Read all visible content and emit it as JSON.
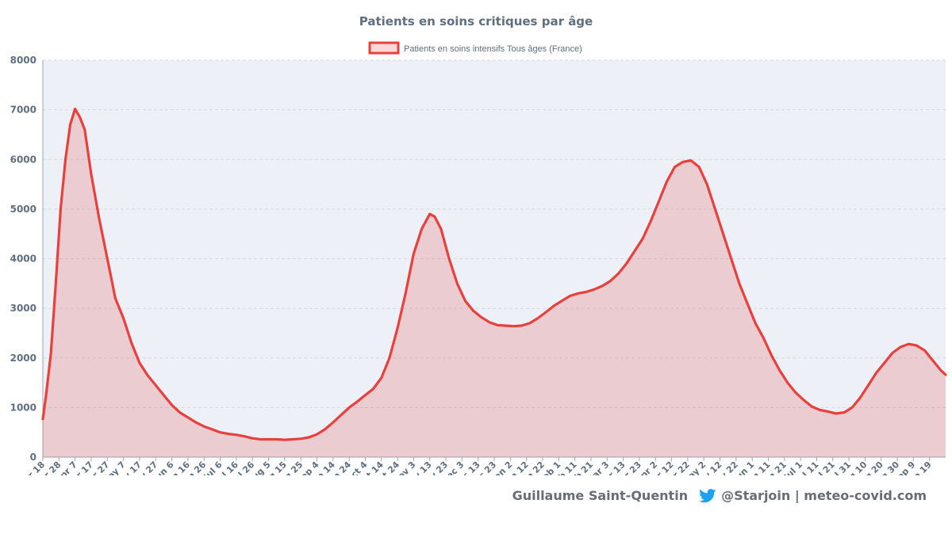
{
  "chart_data": {
    "type": "area",
    "title": "Patients en soins critiques par âge",
    "legend": {
      "position": "top-center",
      "entries": [
        "Patients en soins intensifs Tous âges (France)"
      ]
    },
    "series": [
      {
        "name": "Patients en soins intensifs Tous âges (France)",
        "color": "#e8403c",
        "fill": "rgba(232,64,60,0.2)",
        "points": [
          [
            "2020-03-18",
            770
          ],
          [
            "2020-03-20",
            1250
          ],
          [
            "2020-03-23",
            2100
          ],
          [
            "2020-03-26",
            3500
          ],
          [
            "2020-03-29",
            5000
          ],
          [
            "2020-04-01",
            6000
          ],
          [
            "2020-04-04",
            6700
          ],
          [
            "2020-04-07",
            7020
          ],
          [
            "2020-04-10",
            6850
          ],
          [
            "2020-04-13",
            6600
          ],
          [
            "2020-04-17",
            5700
          ],
          [
            "2020-04-22",
            4800
          ],
          [
            "2020-04-27",
            4000
          ],
          [
            "2020-05-02",
            3200
          ],
          [
            "2020-05-07",
            2800
          ],
          [
            "2020-05-12",
            2300
          ],
          [
            "2020-05-17",
            1900
          ],
          [
            "2020-05-22",
            1650
          ],
          [
            "2020-05-27",
            1450
          ],
          [
            "2020-06-01",
            1250
          ],
          [
            "2020-06-06",
            1050
          ],
          [
            "2020-06-11",
            900
          ],
          [
            "2020-06-16",
            800
          ],
          [
            "2020-06-21",
            700
          ],
          [
            "2020-06-26",
            620
          ],
          [
            "2020-07-01",
            560
          ],
          [
            "2020-07-06",
            500
          ],
          [
            "2020-07-11",
            470
          ],
          [
            "2020-07-16",
            450
          ],
          [
            "2020-07-21",
            420
          ],
          [
            "2020-07-26",
            380
          ],
          [
            "2020-07-31",
            360
          ],
          [
            "2020-08-05",
            360
          ],
          [
            "2020-08-10",
            360
          ],
          [
            "2020-08-15",
            350
          ],
          [
            "2020-08-20",
            360
          ],
          [
            "2020-08-25",
            370
          ],
          [
            "2020-08-30",
            400
          ],
          [
            "2020-09-04",
            460
          ],
          [
            "2020-09-09",
            560
          ],
          [
            "2020-09-14",
            700
          ],
          [
            "2020-09-19",
            850
          ],
          [
            "2020-09-24",
            1000
          ],
          [
            "2020-09-29",
            1120
          ],
          [
            "2020-10-04",
            1250
          ],
          [
            "2020-10-09",
            1380
          ],
          [
            "2020-10-14",
            1600
          ],
          [
            "2020-10-19",
            2000
          ],
          [
            "2020-10-24",
            2600
          ],
          [
            "2020-10-29",
            3300
          ],
          [
            "2020-11-03",
            4100
          ],
          [
            "2020-11-08",
            4600
          ],
          [
            "2020-11-13",
            4900
          ],
          [
            "2020-11-16",
            4850
          ],
          [
            "2020-11-20",
            4600
          ],
          [
            "2020-11-25",
            4000
          ],
          [
            "2020-11-30",
            3500
          ],
          [
            "2020-12-05",
            3150
          ],
          [
            "2020-12-10",
            2950
          ],
          [
            "2020-12-15",
            2820
          ],
          [
            "2020-12-20",
            2720
          ],
          [
            "2020-12-25",
            2660
          ],
          [
            "2020-12-30",
            2650
          ],
          [
            "2021-01-04",
            2640
          ],
          [
            "2021-01-09",
            2650
          ],
          [
            "2021-01-14",
            2700
          ],
          [
            "2021-01-19",
            2800
          ],
          [
            "2021-01-24",
            2920
          ],
          [
            "2021-01-29",
            3050
          ],
          [
            "2021-02-03",
            3150
          ],
          [
            "2021-02-08",
            3250
          ],
          [
            "2021-02-13",
            3300
          ],
          [
            "2021-02-18",
            3330
          ],
          [
            "2021-02-23",
            3380
          ],
          [
            "2021-02-28",
            3450
          ],
          [
            "2021-03-05",
            3550
          ],
          [
            "2021-03-10",
            3700
          ],
          [
            "2021-03-15",
            3900
          ],
          [
            "2021-03-20",
            4150
          ],
          [
            "2021-03-25",
            4400
          ],
          [
            "2021-03-30",
            4750
          ],
          [
            "2021-04-04",
            5150
          ],
          [
            "2021-04-09",
            5550
          ],
          [
            "2021-04-14",
            5850
          ],
          [
            "2021-04-19",
            5950
          ],
          [
            "2021-04-24",
            5980
          ],
          [
            "2021-04-29",
            5850
          ],
          [
            "2021-05-04",
            5500
          ],
          [
            "2021-05-09",
            5000
          ],
          [
            "2021-05-14",
            4500
          ],
          [
            "2021-05-19",
            4000
          ],
          [
            "2021-05-24",
            3500
          ],
          [
            "2021-05-29",
            3100
          ],
          [
            "2021-06-03",
            2700
          ],
          [
            "2021-06-08",
            2400
          ],
          [
            "2021-06-13",
            2050
          ],
          [
            "2021-06-18",
            1750
          ],
          [
            "2021-06-23",
            1500
          ],
          [
            "2021-06-28",
            1300
          ],
          [
            "2021-07-03",
            1150
          ],
          [
            "2021-07-08",
            1020
          ],
          [
            "2021-07-13",
            950
          ],
          [
            "2021-07-18",
            920
          ],
          [
            "2021-07-23",
            880
          ],
          [
            "2021-07-28",
            900
          ],
          [
            "2021-08-02",
            1000
          ],
          [
            "2021-08-07",
            1200
          ],
          [
            "2021-08-12",
            1450
          ],
          [
            "2021-08-17",
            1700
          ],
          [
            "2021-08-22",
            1900
          ],
          [
            "2021-08-27",
            2100
          ],
          [
            "2021-09-01",
            2220
          ],
          [
            "2021-09-06",
            2280
          ],
          [
            "2021-09-11",
            2250
          ],
          [
            "2021-09-16",
            2150
          ],
          [
            "2021-09-21",
            1950
          ],
          [
            "2021-09-26",
            1750
          ],
          [
            "2021-09-29",
            1660
          ]
        ]
      }
    ],
    "x": {
      "type": "date",
      "range": [
        "2020-03-18",
        "2021-09-29"
      ],
      "ticks": [
        [
          "2020-03-18",
          "Mar 18"
        ],
        [
          "2020-03-28",
          "Mar 28"
        ],
        [
          "2020-04-07",
          "Apr 7"
        ],
        [
          "2020-04-17",
          "Apr 17"
        ],
        [
          "2020-04-27",
          "Apr 27"
        ],
        [
          "2020-05-07",
          "May 7"
        ],
        [
          "2020-05-17",
          "May 17"
        ],
        [
          "2020-05-27",
          "May 27"
        ],
        [
          "2020-06-06",
          "Jun 6"
        ],
        [
          "2020-06-16",
          "Jun 16"
        ],
        [
          "2020-06-26",
          "Jun 26"
        ],
        [
          "2020-07-06",
          "Jul 6"
        ],
        [
          "2020-07-16",
          "Jul 16"
        ],
        [
          "2020-07-26",
          "Jul 26"
        ],
        [
          "2020-08-05",
          "Aug 5"
        ],
        [
          "2020-08-15",
          "Aug 15"
        ],
        [
          "2020-08-25",
          "Aug 25"
        ],
        [
          "2020-09-04",
          "Sep 4"
        ],
        [
          "2020-09-14",
          "Sep 14"
        ],
        [
          "2020-09-24",
          "Sep 24"
        ],
        [
          "2020-10-04",
          "Oct 4"
        ],
        [
          "2020-10-14",
          "Oct 14"
        ],
        [
          "2020-10-24",
          "Oct 24"
        ],
        [
          "2020-11-03",
          "Nov 3"
        ],
        [
          "2020-11-13",
          "Nov 13"
        ],
        [
          "2020-11-23",
          "Nov 23"
        ],
        [
          "2020-12-03",
          "Dec 3"
        ],
        [
          "2020-12-13",
          "Dec 13"
        ],
        [
          "2020-12-23",
          "Dec 23"
        ],
        [
          "2021-01-02",
          "Jan 2"
        ],
        [
          "2021-01-12",
          "Jan 12"
        ],
        [
          "2021-01-22",
          "Jan 22"
        ],
        [
          "2021-02-01",
          "Feb 1"
        ],
        [
          "2021-02-11",
          "Feb 11"
        ],
        [
          "2021-02-21",
          "Feb 21"
        ],
        [
          "2021-03-03",
          "Mar 3"
        ],
        [
          "2021-03-13",
          "Mar 13"
        ],
        [
          "2021-03-23",
          "Mar 23"
        ],
        [
          "2021-04-02",
          "Apr 2"
        ],
        [
          "2021-04-12",
          "Apr 12"
        ],
        [
          "2021-04-22",
          "Apr 22"
        ],
        [
          "2021-05-02",
          "May 2"
        ],
        [
          "2021-05-12",
          "May 12"
        ],
        [
          "2021-05-22",
          "May 22"
        ],
        [
          "2021-06-01",
          "Jun 1"
        ],
        [
          "2021-06-11",
          "Jun 11"
        ],
        [
          "2021-06-21",
          "Jun 21"
        ],
        [
          "2021-07-01",
          "Jul 1"
        ],
        [
          "2021-07-11",
          "Jul 11"
        ],
        [
          "2021-07-21",
          "Jul 21"
        ],
        [
          "2021-07-31",
          "Jul 31"
        ],
        [
          "2021-08-10",
          "Aug 10"
        ],
        [
          "2021-08-20",
          "Aug 20"
        ],
        [
          "2021-08-30",
          "Aug 30"
        ],
        [
          "2021-09-09",
          "Sep 9"
        ],
        [
          "2021-09-19",
          "Sep 19"
        ]
      ]
    },
    "y": {
      "range": [
        0,
        8000
      ],
      "ticks": [
        0,
        1000,
        2000,
        3000,
        4000,
        5000,
        6000,
        7000,
        8000
      ]
    },
    "grid": true,
    "plot_background": "#edf1f7"
  },
  "footer": {
    "author": "Guillaume Saint-Quentin",
    "handle": "@Starjoin | meteo-covid.com",
    "icon": "twitter-bird-icon",
    "icon_color": "#1da1f2"
  }
}
